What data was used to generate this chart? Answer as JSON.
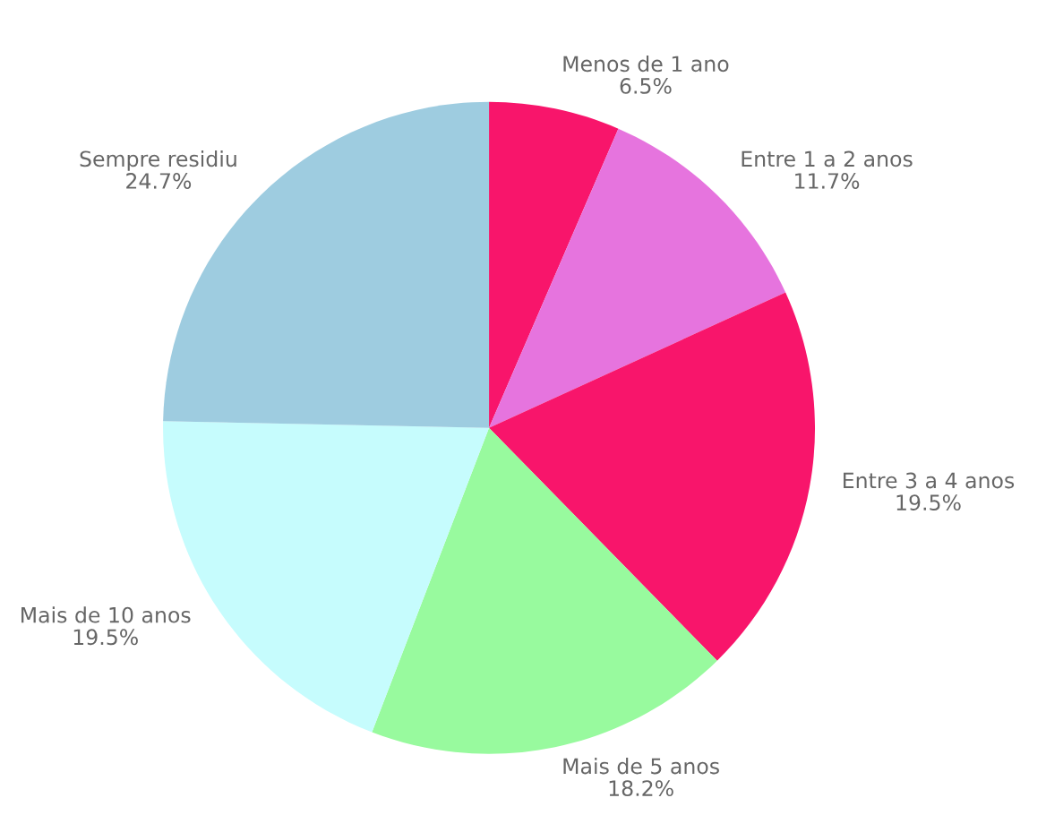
{
  "chart_data": {
    "type": "pie",
    "categories": [
      "Menos de 1 ano",
      "Entre 1 a 2 anos",
      "Entre 3 a 4 anos",
      "Mais de 5 anos",
      "Mais de 10 anos",
      "Sempre residiu"
    ],
    "values": [
      6.5,
      11.7,
      19.5,
      18.2,
      19.5,
      24.7
    ],
    "value_labels": [
      "6.5%",
      "11.7%",
      "19.5%",
      "18.2%",
      "19.5%",
      "24.7%"
    ],
    "colors": [
      "#f8156b",
      "#e674de",
      "#f8156b",
      "#98fa9e",
      "#c6fcfd",
      "#9ecce0"
    ]
  }
}
